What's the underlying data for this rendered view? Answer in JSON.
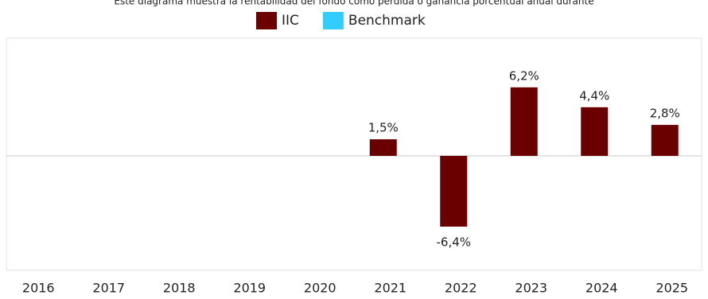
{
  "chart_data": {
    "type": "bar",
    "subtitle": "Este diagrama muestra la rentabilidad del fondo como pérdida o ganancia porcentual anual durante",
    "categories": [
      "2016",
      "2017",
      "2018",
      "2019",
      "2020",
      "2021",
      "2022",
      "2023",
      "2024",
      "2025"
    ],
    "series": [
      {
        "name": "IIC",
        "color": "#6b0000",
        "values": [
          null,
          null,
          null,
          null,
          null,
          1.5,
          -6.4,
          6.2,
          4.4,
          2.8
        ],
        "value_labels": [
          null,
          null,
          null,
          null,
          null,
          "1,5%",
          "-6,4%",
          "6,2%",
          "4,4%",
          "2,8%"
        ]
      },
      {
        "name": "Benchmark",
        "color": "#33ccff",
        "values": [
          null,
          null,
          null,
          null,
          null,
          null,
          null,
          null,
          null,
          null
        ]
      }
    ],
    "ylim": [
      -10,
      10
    ]
  }
}
